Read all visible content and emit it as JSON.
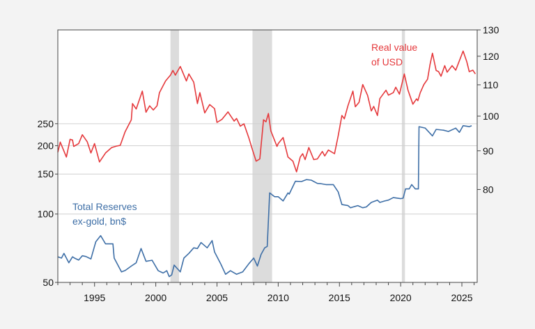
{
  "chart_data": {
    "type": "line",
    "title": "",
    "xlabel": "",
    "x_ticks": [
      "1995",
      "2000",
      "2005",
      "2010",
      "2015",
      "2020",
      "2025"
    ],
    "xlim": [
      1992.0,
      2026.25
    ],
    "left_axis": {
      "scale": "log",
      "ylim": [
        50,
        647
      ],
      "ticks": [
        "50",
        "100",
        "150",
        "200",
        "250"
      ]
    },
    "right_axis": {
      "scale": "log",
      "ylim": [
        60.3,
        130
      ],
      "ticks": [
        "80",
        "90",
        "100",
        "110",
        "120",
        "130"
      ]
    },
    "grid": "horizontal at left-axis ticks",
    "recession_shading": [
      [
        2001.2,
        2001.9
      ],
      [
        2007.9,
        2009.5
      ],
      [
        2020.1,
        2020.35
      ]
    ],
    "colors": {
      "usd": "#e5383b",
      "reserves": "#3d6ea6",
      "recession": "#dcdcdc",
      "grid": "#d0d0d0"
    },
    "annotations": {
      "usd_line1": "Real value",
      "usd_line2": "of USD",
      "reserves_line1": "Total Reserves",
      "reserves_line2": "ex-gold, bn$"
    },
    "series": [
      {
        "key": "usd",
        "axis": "right",
        "points": [
          [
            1992.0,
            89.6
          ],
          [
            1992.2,
            92.4
          ],
          [
            1992.7,
            88.3
          ],
          [
            1993.0,
            93.2
          ],
          [
            1993.2,
            93.0
          ],
          [
            1993.3,
            91.2
          ],
          [
            1993.7,
            92.0
          ],
          [
            1994.0,
            94.5
          ],
          [
            1994.4,
            92.5
          ],
          [
            1994.7,
            89.4
          ],
          [
            1995.0,
            92.0
          ],
          [
            1995.4,
            87.0
          ],
          [
            1995.9,
            89.4
          ],
          [
            1996.4,
            90.9
          ],
          [
            1996.8,
            91.3
          ],
          [
            1997.1,
            91.5
          ],
          [
            1997.5,
            95.4
          ],
          [
            1998.0,
            98.9
          ],
          [
            1998.1,
            103.9
          ],
          [
            1998.4,
            102.2
          ],
          [
            1998.9,
            107.9
          ],
          [
            1999.2,
            101.2
          ],
          [
            1999.5,
            103.2
          ],
          [
            1999.8,
            101.9
          ],
          [
            2000.1,
            103.2
          ],
          [
            2000.3,
            107.4
          ],
          [
            2000.8,
            111.3
          ],
          [
            2001.2,
            113.3
          ],
          [
            2001.4,
            114.9
          ],
          [
            2001.6,
            113.3
          ],
          [
            2002.0,
            116.3
          ],
          [
            2002.5,
            111.3
          ],
          [
            2002.7,
            113.7
          ],
          [
            2003.1,
            110.9
          ],
          [
            2003.4,
            103.9
          ],
          [
            2003.6,
            107.4
          ],
          [
            2004.0,
            101.0
          ],
          [
            2004.4,
            103.6
          ],
          [
            2004.8,
            102.3
          ],
          [
            2005.0,
            98.1
          ],
          [
            2005.4,
            99.0
          ],
          [
            2005.9,
            101.3
          ],
          [
            2006.4,
            98.5
          ],
          [
            2006.6,
            99.3
          ],
          [
            2006.9,
            97.0
          ],
          [
            2007.2,
            97.7
          ],
          [
            2007.6,
            93.6
          ],
          [
            2007.9,
            90.2
          ],
          [
            2008.2,
            87.2
          ],
          [
            2008.5,
            87.8
          ],
          [
            2008.8,
            98.9
          ],
          [
            2009.0,
            98.3
          ],
          [
            2009.2,
            100.8
          ],
          [
            2009.4,
            95.6
          ],
          [
            2009.9,
            91.2
          ],
          [
            2010.0,
            92.0
          ],
          [
            2010.4,
            93.7
          ],
          [
            2010.8,
            88.3
          ],
          [
            2011.2,
            87.2
          ],
          [
            2011.5,
            84.4
          ],
          [
            2011.8,
            88.3
          ],
          [
            2012.0,
            89.2
          ],
          [
            2012.2,
            87.6
          ],
          [
            2012.5,
            90.9
          ],
          [
            2012.9,
            87.6
          ],
          [
            2013.2,
            87.8
          ],
          [
            2013.4,
            88.8
          ],
          [
            2013.6,
            89.8
          ],
          [
            2013.8,
            88.6
          ],
          [
            2014.1,
            90.2
          ],
          [
            2014.6,
            89.2
          ],
          [
            2014.9,
            94.2
          ],
          [
            2015.2,
            100.2
          ],
          [
            2015.4,
            99.2
          ],
          [
            2015.7,
            103.3
          ],
          [
            2016.1,
            107.9
          ],
          [
            2016.3,
            102.9
          ],
          [
            2016.6,
            104.3
          ],
          [
            2016.9,
            110.1
          ],
          [
            2017.3,
            106.5
          ],
          [
            2017.6,
            101.6
          ],
          [
            2017.8,
            103.0
          ],
          [
            2018.1,
            100.2
          ],
          [
            2018.3,
            105.5
          ],
          [
            2018.8,
            108.2
          ],
          [
            2019.0,
            106.6
          ],
          [
            2019.4,
            107.4
          ],
          [
            2019.6,
            109.2
          ],
          [
            2019.9,
            106.9
          ],
          [
            2020.3,
            113.7
          ],
          [
            2020.6,
            108.2
          ],
          [
            2021.0,
            103.7
          ],
          [
            2021.3,
            105.4
          ],
          [
            2021.4,
            104.8
          ],
          [
            2021.6,
            107.4
          ],
          [
            2021.9,
            110.1
          ],
          [
            2022.2,
            111.9
          ],
          [
            2022.4,
            117.0
          ],
          [
            2022.6,
            121.1
          ],
          [
            2022.9,
            114.9
          ],
          [
            2023.1,
            114.5
          ],
          [
            2023.3,
            112.9
          ],
          [
            2023.6,
            116.6
          ],
          [
            2023.8,
            114.3
          ],
          [
            2024.2,
            116.6
          ],
          [
            2024.5,
            115.0
          ],
          [
            2025.1,
            121.9
          ],
          [
            2025.4,
            118.0
          ],
          [
            2025.6,
            114.5
          ],
          [
            2025.9,
            115.0
          ],
          [
            2026.1,
            113.7
          ]
        ]
      },
      {
        "key": "reserves",
        "axis": "left",
        "points": [
          [
            1992.0,
            64.8
          ],
          [
            1992.3,
            64.0
          ],
          [
            1992.5,
            67.1
          ],
          [
            1992.9,
            61.0
          ],
          [
            1993.2,
            64.8
          ],
          [
            1993.4,
            63.8
          ],
          [
            1993.7,
            62.7
          ],
          [
            1994.0,
            65.5
          ],
          [
            1994.3,
            65.0
          ],
          [
            1994.7,
            63.4
          ],
          [
            1995.1,
            75.5
          ],
          [
            1995.5,
            80.3
          ],
          [
            1995.9,
            73.9
          ],
          [
            1996.5,
            73.9
          ],
          [
            1996.6,
            64.0
          ],
          [
            1997.2,
            55.6
          ],
          [
            1997.5,
            56.4
          ],
          [
            1998.0,
            59.0
          ],
          [
            1998.4,
            61.0
          ],
          [
            1998.8,
            70.5
          ],
          [
            1999.2,
            61.9
          ],
          [
            1999.7,
            62.6
          ],
          [
            2000.2,
            56.3
          ],
          [
            2000.6,
            55.0
          ],
          [
            2000.9,
            56.3
          ],
          [
            2001.1,
            53.0
          ],
          [
            2001.3,
            54.0
          ],
          [
            2001.5,
            59.6
          ],
          [
            2002.0,
            55.6
          ],
          [
            2002.3,
            64.0
          ],
          [
            2002.7,
            67.1
          ],
          [
            2003.1,
            71.0
          ],
          [
            2003.4,
            70.5
          ],
          [
            2003.7,
            74.9
          ],
          [
            2004.2,
            71.0
          ],
          [
            2004.6,
            76.4
          ],
          [
            2004.8,
            68.1
          ],
          [
            2005.3,
            60.4
          ],
          [
            2005.7,
            54.3
          ],
          [
            2006.1,
            56.3
          ],
          [
            2006.6,
            54.3
          ],
          [
            2007.1,
            55.6
          ],
          [
            2007.6,
            60.4
          ],
          [
            2008.0,
            64.0
          ],
          [
            2008.3,
            59.0
          ],
          [
            2008.6,
            66.4
          ],
          [
            2008.9,
            71.0
          ],
          [
            2009.1,
            72.0
          ],
          [
            2009.3,
            123.9
          ],
          [
            2009.7,
            119.2
          ],
          [
            2010.0,
            119.2
          ],
          [
            2010.4,
            114.2
          ],
          [
            2010.8,
            123.9
          ],
          [
            2010.9,
            122.5
          ],
          [
            2011.4,
            139.4
          ],
          [
            2011.9,
            139.0
          ],
          [
            2012.3,
            141.8
          ],
          [
            2012.7,
            141.0
          ],
          [
            2013.2,
            136.4
          ],
          [
            2013.5,
            136.0
          ],
          [
            2013.9,
            134.8
          ],
          [
            2014.5,
            134.8
          ],
          [
            2014.9,
            125.2
          ],
          [
            2015.2,
            110.1
          ],
          [
            2015.7,
            108.9
          ],
          [
            2015.9,
            106.6
          ],
          [
            2016.5,
            108.9
          ],
          [
            2016.9,
            106.6
          ],
          [
            2017.2,
            107.5
          ],
          [
            2017.6,
            112.5
          ],
          [
            2018.1,
            115.2
          ],
          [
            2018.3,
            112.5
          ],
          [
            2018.7,
            114.2
          ],
          [
            2019.0,
            115.2
          ],
          [
            2019.4,
            118.1
          ],
          [
            2020.0,
            116.9
          ],
          [
            2020.2,
            117.5
          ],
          [
            2020.4,
            129.0
          ],
          [
            2020.7,
            129.0
          ],
          [
            2020.9,
            134.8
          ],
          [
            2021.2,
            129.0
          ],
          [
            2021.45,
            129.0
          ],
          [
            2021.5,
            242.6
          ],
          [
            2022.0,
            239.2
          ],
          [
            2022.6,
            220.8
          ],
          [
            2022.9,
            236.0
          ],
          [
            2023.5,
            234.0
          ],
          [
            2023.9,
            231.0
          ],
          [
            2024.5,
            239.0
          ],
          [
            2024.8,
            229.0
          ],
          [
            2025.1,
            245.0
          ],
          [
            2025.6,
            242.6
          ],
          [
            2025.8,
            245.0
          ]
        ]
      }
    ]
  }
}
